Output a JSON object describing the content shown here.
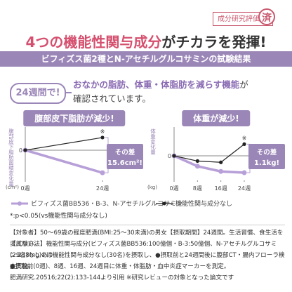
{
  "header": {
    "badge": "成分研究評価",
    "seal": "済",
    "headline_part1": "4つの機能性関与成分",
    "headline_part2": "がチカラを発揮!",
    "banner": "ビフィズス菌2種とN-アセチルグルコサミンの試験結果"
  },
  "finding": {
    "tag": "24週間で!",
    "line1_highlight": "おなかの脂肪、体重・体脂肪を減らす機能",
    "line1_suffix": "が",
    "line2": "確認されています。"
  },
  "colors": {
    "accent_purple": "#9b86b8",
    "series_active": "#b79fd8",
    "series_placebo": "#222222",
    "headline_pink": "#d54f6e"
  },
  "chart_data": [
    {
      "type": "line",
      "title": "腹部皮下脂肪が減少!",
      "ylabel": "腹部皮下脂肪面積変化量",
      "yunit": "(cm²)",
      "x": [
        "0週",
        "24週"
      ],
      "series": [
        {
          "name": "ビフィズス菌BB536・B-3、N-アセチルグルコサミン",
          "values": [
            0,
            -10
          ]
        },
        {
          "name": "機能性関与成分なし",
          "values": [
            0,
            5.6
          ]
        }
      ],
      "ylim": [
        -14,
        9
      ],
      "significance": {
        "x": "24週",
        "label": "※"
      },
      "callout": {
        "title": "その差",
        "value": "15.6cm²!"
      }
    },
    {
      "type": "line",
      "title": "体重が減少!",
      "ylabel": "体重変化量",
      "yunit": "(kg)",
      "x": [
        "0週",
        "8週",
        "16週",
        "24週"
      ],
      "series": [
        {
          "name": "ビフィズス菌BB536・B-3、N-アセチルグルコサミン",
          "values": [
            0,
            -0.4,
            -0.6,
            -0.65
          ]
        },
        {
          "name": "機能性関与成分なし",
          "values": [
            0,
            -0.2,
            -0.25,
            0.45
          ]
        }
      ],
      "ylim": [
        -1.0,
        1.0
      ],
      "significance": {
        "x": "24週",
        "label": "※"
      },
      "callout": {
        "title": "その差",
        "value": "1.1kg!"
      }
    }
  ],
  "legend": {
    "active": "ビフィズス菌BB536・B-3、N-アセチルグルコサミン",
    "placebo": "機能性関与成分なし"
  },
  "notes": {
    "significance": "*:p<0.05(vs機能性関与成分なし)",
    "subjects": "【対象者】50～69歳の軽度肥満(BMI:25～30未満)の男女【摂取期間】24週間。生活習慣、食生活を変えない。",
    "method1": "【試験方法】機能性関与成分(ビフィズス菌BB536:100億個・B-3:50億個、N-アセチルグルコサミン:238mg)あり",
    "method2": "(29名)もしくは機能性関与成分なし(30名)を摂取し、●摂取前と24週間後に腹部CT・腸内フローラ検査実施、",
    "method3": "●摂取前(0週)、8週、16週、24週目に体重・体脂肪・血中炎症マーカーを測定。",
    "reference": "肥満研究.20516;22(2):133-144より引用 ※研究レビューの対象となった論文です"
  }
}
